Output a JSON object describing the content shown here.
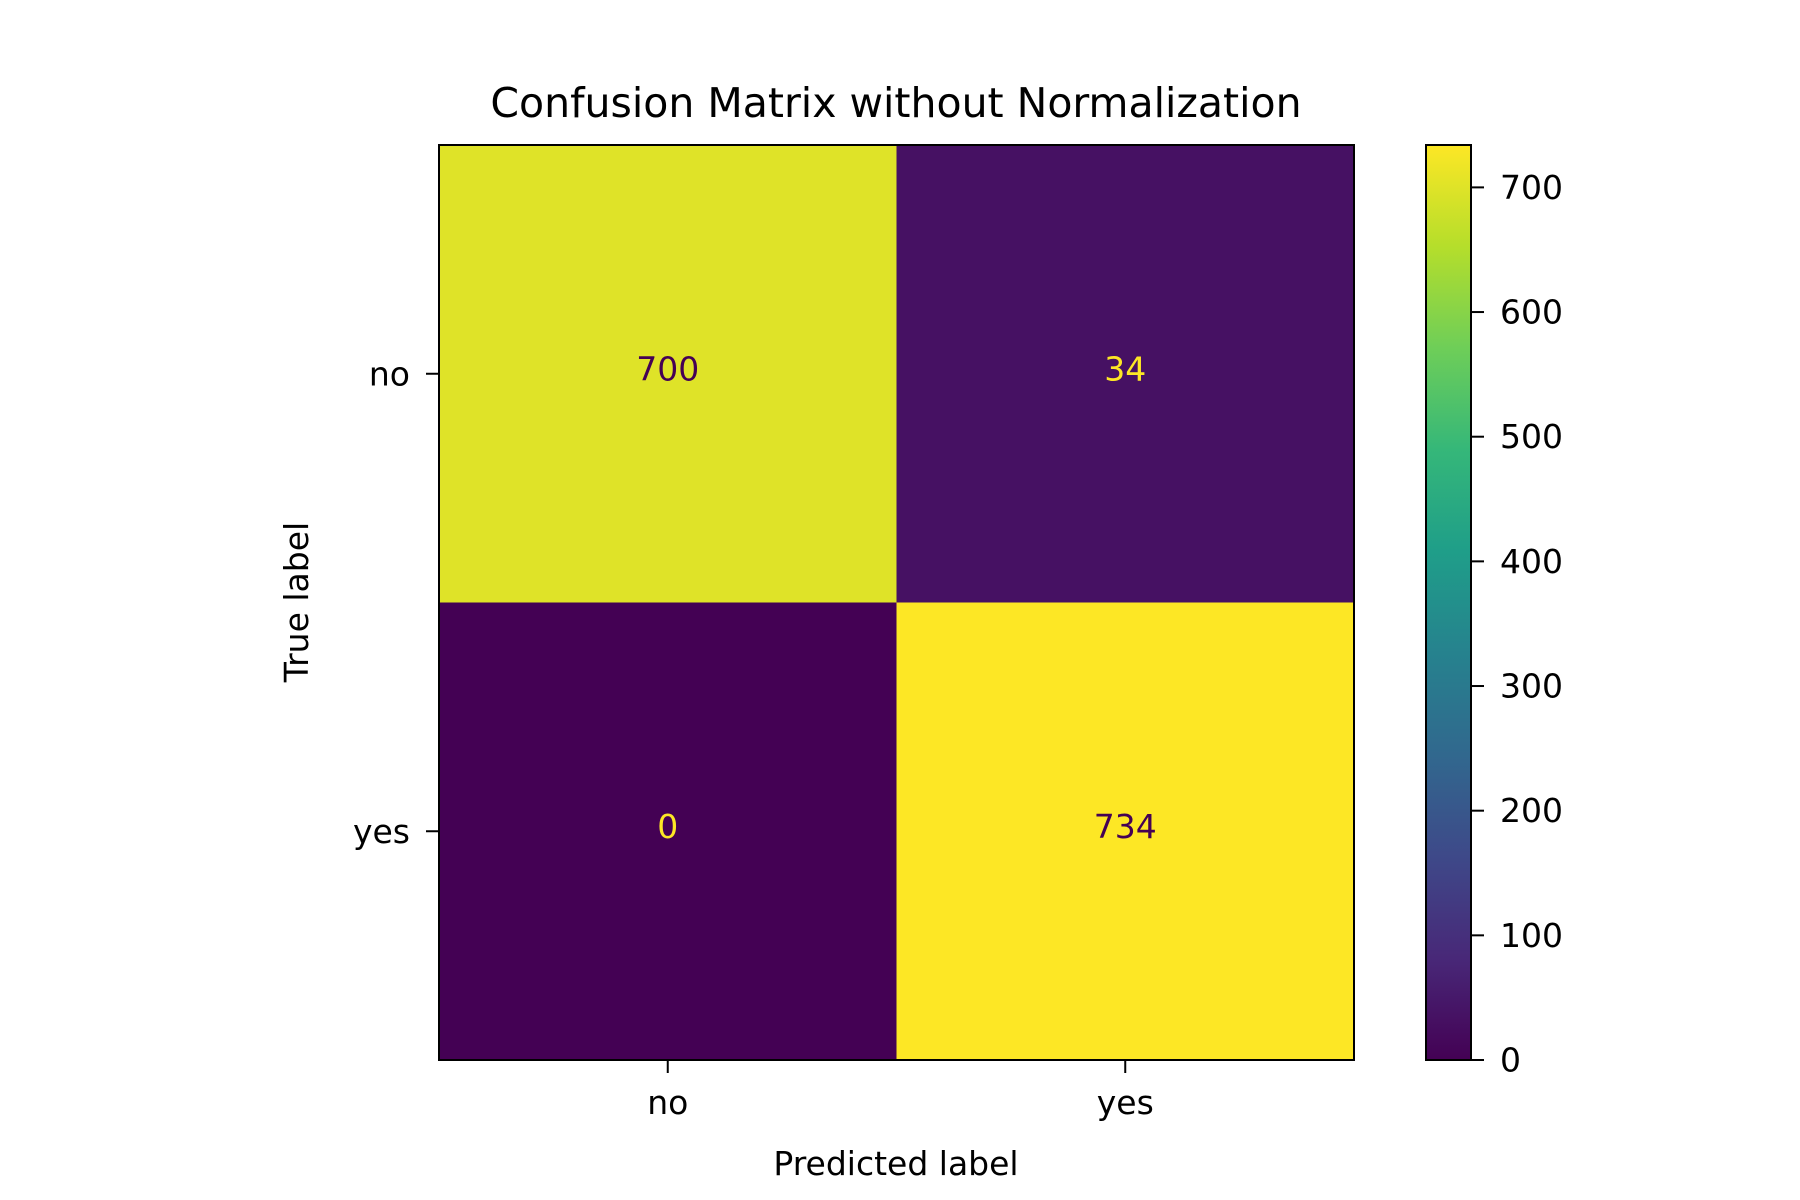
{
  "chart_data": {
    "type": "heatmap",
    "title": "Confusion Matrix without Normalization",
    "xlabel": "Predicted label",
    "ylabel": "True label",
    "x_categories": [
      "no",
      "yes"
    ],
    "y_categories": [
      "no",
      "yes"
    ],
    "values": [
      [
        700,
        34
      ],
      [
        0,
        734
      ]
    ],
    "colormap": "viridis",
    "colorbar": {
      "range": [
        0,
        734
      ],
      "ticks": [
        0,
        100,
        200,
        300,
        400,
        500,
        600,
        700
      ]
    },
    "cell_label_colors": {
      "on_light": "#440154",
      "on_dark": "#fde725"
    },
    "grid": false
  }
}
